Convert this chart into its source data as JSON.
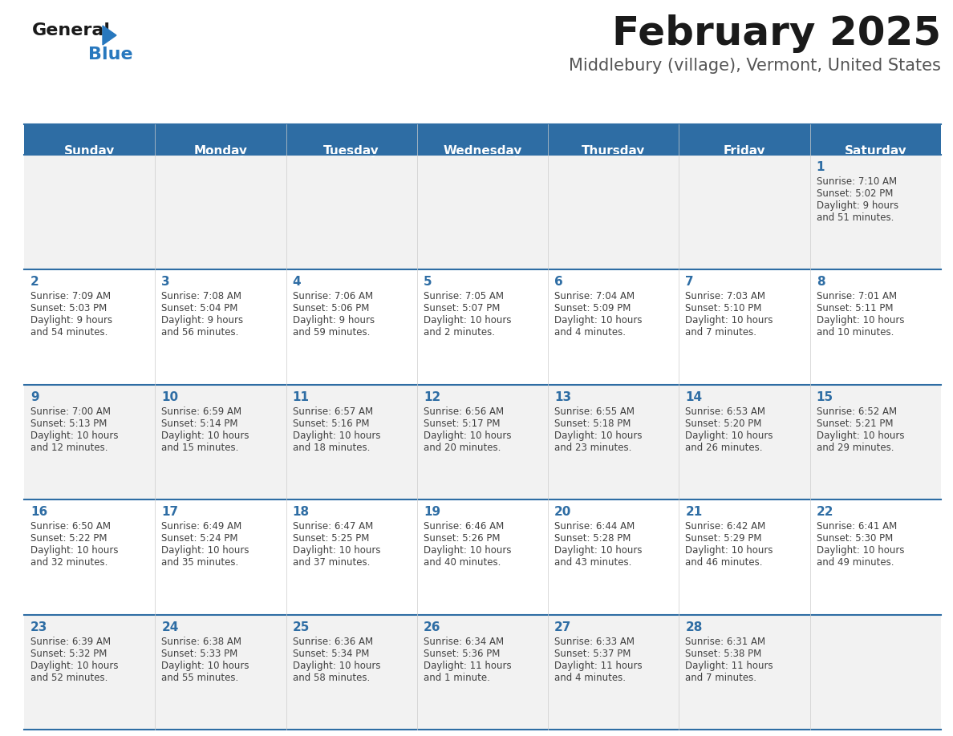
{
  "title": "February 2025",
  "subtitle": "Middlebury (village), Vermont, United States",
  "days_of_week": [
    "Sunday",
    "Monday",
    "Tuesday",
    "Wednesday",
    "Thursday",
    "Friday",
    "Saturday"
  ],
  "header_bg": "#2E6DA4",
  "header_text": "#FFFFFF",
  "row_bg": [
    "#F2F2F2",
    "#FFFFFF",
    "#F2F2F2",
    "#FFFFFF",
    "#F2F2F2"
  ],
  "day_num_color": "#2E6DA4",
  "text_color": "#404040",
  "divider_color": "#2E6DA4",
  "border_color": "#cccccc",
  "logo_general_color": "#1a1a1a",
  "logo_blue_color": "#2878BE",
  "title_fontsize": 36,
  "subtitle_fontsize": 15,
  "header_fontsize": 11,
  "day_num_fontsize": 11,
  "cell_text_fontsize": 8.5,
  "calendar_data": [
    {
      "day": 1,
      "row": 0,
      "col": 6,
      "sunrise": "7:10 AM",
      "sunset": "5:02 PM",
      "daylight": "9 hours",
      "daylight2": "and 51 minutes."
    },
    {
      "day": 2,
      "row": 1,
      "col": 0,
      "sunrise": "7:09 AM",
      "sunset": "5:03 PM",
      "daylight": "9 hours",
      "daylight2": "and 54 minutes."
    },
    {
      "day": 3,
      "row": 1,
      "col": 1,
      "sunrise": "7:08 AM",
      "sunset": "5:04 PM",
      "daylight": "9 hours",
      "daylight2": "and 56 minutes."
    },
    {
      "day": 4,
      "row": 1,
      "col": 2,
      "sunrise": "7:06 AM",
      "sunset": "5:06 PM",
      "daylight": "9 hours",
      "daylight2": "and 59 minutes."
    },
    {
      "day": 5,
      "row": 1,
      "col": 3,
      "sunrise": "7:05 AM",
      "sunset": "5:07 PM",
      "daylight": "10 hours",
      "daylight2": "and 2 minutes."
    },
    {
      "day": 6,
      "row": 1,
      "col": 4,
      "sunrise": "7:04 AM",
      "sunset": "5:09 PM",
      "daylight": "10 hours",
      "daylight2": "and 4 minutes."
    },
    {
      "day": 7,
      "row": 1,
      "col": 5,
      "sunrise": "7:03 AM",
      "sunset": "5:10 PM",
      "daylight": "10 hours",
      "daylight2": "and 7 minutes."
    },
    {
      "day": 8,
      "row": 1,
      "col": 6,
      "sunrise": "7:01 AM",
      "sunset": "5:11 PM",
      "daylight": "10 hours",
      "daylight2": "and 10 minutes."
    },
    {
      "day": 9,
      "row": 2,
      "col": 0,
      "sunrise": "7:00 AM",
      "sunset": "5:13 PM",
      "daylight": "10 hours",
      "daylight2": "and 12 minutes."
    },
    {
      "day": 10,
      "row": 2,
      "col": 1,
      "sunrise": "6:59 AM",
      "sunset": "5:14 PM",
      "daylight": "10 hours",
      "daylight2": "and 15 minutes."
    },
    {
      "day": 11,
      "row": 2,
      "col": 2,
      "sunrise": "6:57 AM",
      "sunset": "5:16 PM",
      "daylight": "10 hours",
      "daylight2": "and 18 minutes."
    },
    {
      "day": 12,
      "row": 2,
      "col": 3,
      "sunrise": "6:56 AM",
      "sunset": "5:17 PM",
      "daylight": "10 hours",
      "daylight2": "and 20 minutes."
    },
    {
      "day": 13,
      "row": 2,
      "col": 4,
      "sunrise": "6:55 AM",
      "sunset": "5:18 PM",
      "daylight": "10 hours",
      "daylight2": "and 23 minutes."
    },
    {
      "day": 14,
      "row": 2,
      "col": 5,
      "sunrise": "6:53 AM",
      "sunset": "5:20 PM",
      "daylight": "10 hours",
      "daylight2": "and 26 minutes."
    },
    {
      "day": 15,
      "row": 2,
      "col": 6,
      "sunrise": "6:52 AM",
      "sunset": "5:21 PM",
      "daylight": "10 hours",
      "daylight2": "and 29 minutes."
    },
    {
      "day": 16,
      "row": 3,
      "col": 0,
      "sunrise": "6:50 AM",
      "sunset": "5:22 PM",
      "daylight": "10 hours",
      "daylight2": "and 32 minutes."
    },
    {
      "day": 17,
      "row": 3,
      "col": 1,
      "sunrise": "6:49 AM",
      "sunset": "5:24 PM",
      "daylight": "10 hours",
      "daylight2": "and 35 minutes."
    },
    {
      "day": 18,
      "row": 3,
      "col": 2,
      "sunrise": "6:47 AM",
      "sunset": "5:25 PM",
      "daylight": "10 hours",
      "daylight2": "and 37 minutes."
    },
    {
      "day": 19,
      "row": 3,
      "col": 3,
      "sunrise": "6:46 AM",
      "sunset": "5:26 PM",
      "daylight": "10 hours",
      "daylight2": "and 40 minutes."
    },
    {
      "day": 20,
      "row": 3,
      "col": 4,
      "sunrise": "6:44 AM",
      "sunset": "5:28 PM",
      "daylight": "10 hours",
      "daylight2": "and 43 minutes."
    },
    {
      "day": 21,
      "row": 3,
      "col": 5,
      "sunrise": "6:42 AM",
      "sunset": "5:29 PM",
      "daylight": "10 hours",
      "daylight2": "and 46 minutes."
    },
    {
      "day": 22,
      "row": 3,
      "col": 6,
      "sunrise": "6:41 AM",
      "sunset": "5:30 PM",
      "daylight": "10 hours",
      "daylight2": "and 49 minutes."
    },
    {
      "day": 23,
      "row": 4,
      "col": 0,
      "sunrise": "6:39 AM",
      "sunset": "5:32 PM",
      "daylight": "10 hours",
      "daylight2": "and 52 minutes."
    },
    {
      "day": 24,
      "row": 4,
      "col": 1,
      "sunrise": "6:38 AM",
      "sunset": "5:33 PM",
      "daylight": "10 hours",
      "daylight2": "and 55 minutes."
    },
    {
      "day": 25,
      "row": 4,
      "col": 2,
      "sunrise": "6:36 AM",
      "sunset": "5:34 PM",
      "daylight": "10 hours",
      "daylight2": "and 58 minutes."
    },
    {
      "day": 26,
      "row": 4,
      "col": 3,
      "sunrise": "6:34 AM",
      "sunset": "5:36 PM",
      "daylight": "11 hours",
      "daylight2": "and 1 minute."
    },
    {
      "day": 27,
      "row": 4,
      "col": 4,
      "sunrise": "6:33 AM",
      "sunset": "5:37 PM",
      "daylight": "11 hours",
      "daylight2": "and 4 minutes."
    },
    {
      "day": 28,
      "row": 4,
      "col": 5,
      "sunrise": "6:31 AM",
      "sunset": "5:38 PM",
      "daylight": "11 hours",
      "daylight2": "and 7 minutes."
    }
  ]
}
